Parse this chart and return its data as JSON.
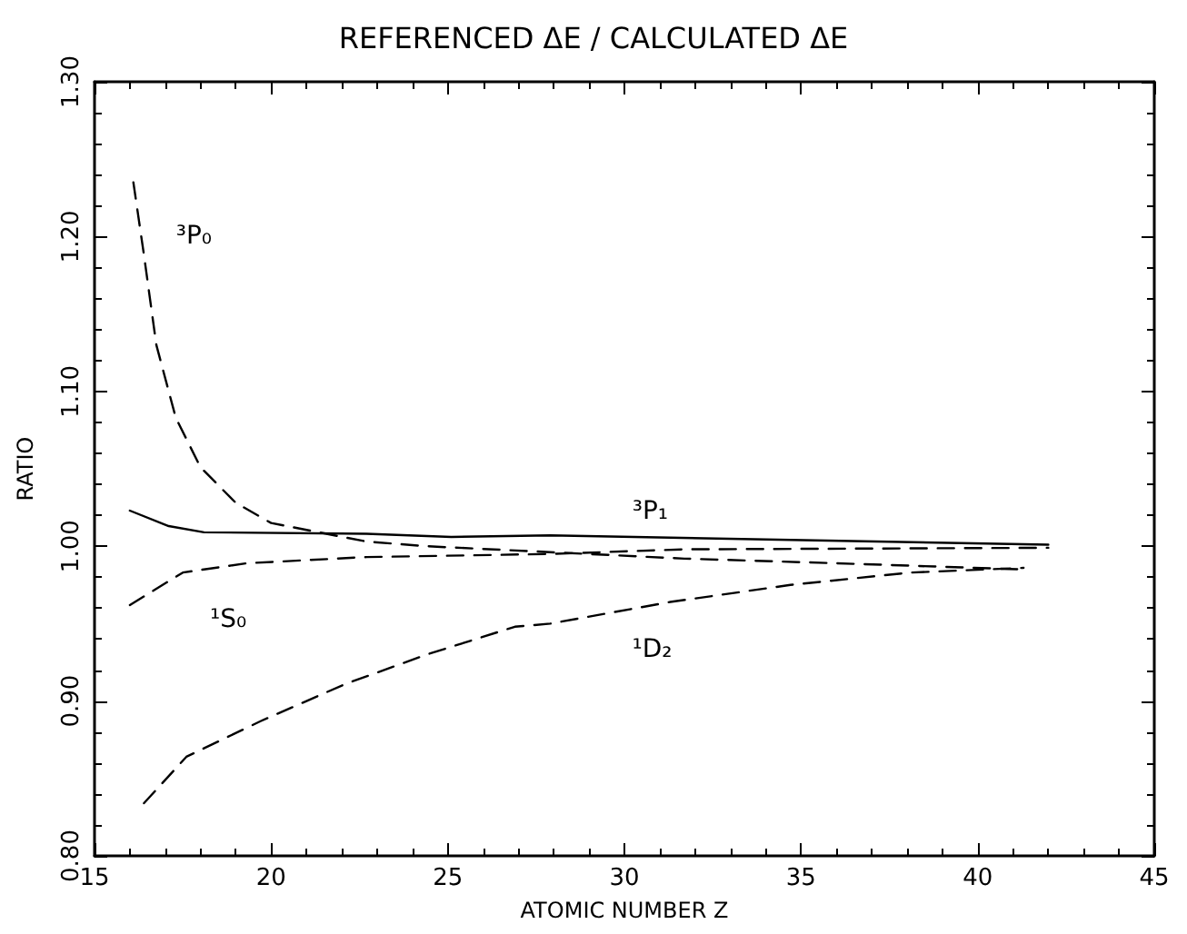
{
  "chart_data": {
    "type": "line",
    "title": "REFERENCED ΔE / CALCULATED ΔE",
    "xlabel": "ATOMIC NUMBER Z",
    "ylabel": "RATIO",
    "xlim": [
      15,
      45
    ],
    "xticks": [
      15,
      20,
      25,
      30,
      35,
      40,
      45
    ],
    "ylim": [
      0.8,
      1.3
    ],
    "yticks": [
      {
        "value": 0.8,
        "label": "0.80"
      },
      {
        "value": 0.9,
        "label": "0.90"
      },
      {
        "value": 1.0,
        "label": "1.00"
      },
      {
        "value": 1.1,
        "label": "1.10"
      },
      {
        "value": 1.2,
        "label": "1.20"
      },
      {
        "value": 1.3,
        "label": "1.30"
      }
    ],
    "grid": false,
    "legend": false,
    "marker": "none",
    "series": [
      {
        "name": "³P₁",
        "color": "#000000",
        "line_style": "solid",
        "x": [
          16,
          17.1,
          18.1,
          22.7,
          25.1,
          27.9,
          42
        ],
        "values": [
          1.023,
          1.013,
          1.009,
          1.008,
          1.006,
          1.007,
          1.001
        ]
      },
      {
        "name": "³P₀",
        "color": "#000000",
        "line_style": "dashed",
        "x": [
          16.1,
          16.4,
          16.75,
          17.3,
          18,
          19,
          20,
          22.7,
          24.4,
          31.7,
          36,
          41.3
        ],
        "values": [
          1.235,
          1.188,
          1.13,
          1.083,
          1.051,
          1.028,
          1.015,
          1.003,
          1.0,
          0.992,
          0.989,
          0.985
        ]
      },
      {
        "name": "¹S₀",
        "color": "#000000",
        "line_style": "dashed",
        "x": [
          16,
          17.5,
          19.3,
          22.7,
          27.9,
          31.7,
          42
        ],
        "values": [
          0.962,
          0.983,
          0.989,
          0.993,
          0.995,
          0.998,
          0.999
        ]
      },
      {
        "name": "¹D₂",
        "color": "#000000",
        "line_style": "dashed",
        "x": [
          16.4,
          17.6,
          19.7,
          22.1,
          24.4,
          26.9,
          27.9,
          31.3,
          34.7,
          38.1,
          41.3
        ],
        "values": [
          0.834,
          0.864,
          0.887,
          0.911,
          0.93,
          0.948,
          0.95,
          0.964,
          0.975,
          0.983,
          0.986
        ]
      }
    ]
  }
}
